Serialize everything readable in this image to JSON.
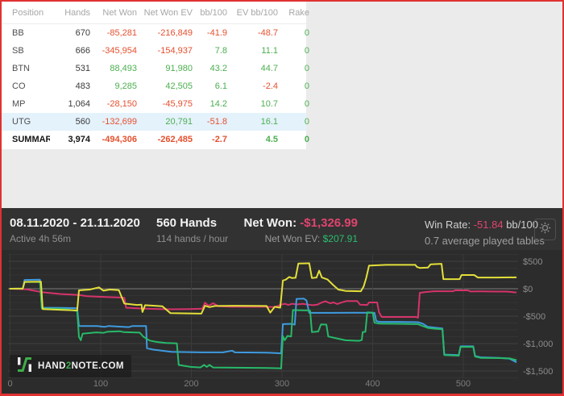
{
  "colors": {
    "frame": "#e03131",
    "pagebg": "#ebebeb",
    "neg": "#e6502f",
    "pos": "#4caf50",
    "pink": "#e0446f",
    "green": "#2bbd6e",
    "hl": "#e4f2fc"
  },
  "table": {
    "columns": [
      "Position",
      "Hands",
      "Net Won",
      "Net Won  EV",
      "bb/100",
      "EV bb/100",
      "Rake"
    ],
    "rows": [
      {
        "position": "BB",
        "hands": "670",
        "net_won": "-85,281",
        "net_won_ev": "-216,849",
        "bb100": "-41.9",
        "ev_bb100": "-48.7",
        "rake": "0"
      },
      {
        "position": "SB",
        "hands": "666",
        "net_won": "-345,954",
        "net_won_ev": "-154,937",
        "bb100": "7.8",
        "ev_bb100": "11.1",
        "rake": "0"
      },
      {
        "position": "BTN",
        "hands": "531",
        "net_won": "88,493",
        "net_won_ev": "91,980",
        "bb100": "43.2",
        "ev_bb100": "44.7",
        "rake": "0"
      },
      {
        "position": "CO",
        "hands": "483",
        "net_won": "9,285",
        "net_won_ev": "42,505",
        "bb100": "6.1",
        "ev_bb100": "-2.4",
        "rake": "0"
      },
      {
        "position": "MP",
        "hands": "1,064",
        "net_won": "-28,150",
        "net_won_ev": "-45,975",
        "bb100": "14.2",
        "ev_bb100": "10.7",
        "rake": "0"
      },
      {
        "position": "UTG",
        "hands": "560",
        "net_won": "-132,699",
        "net_won_ev": "20,791",
        "bb100": "-51.8",
        "ev_bb100": "16.1",
        "rake": "0"
      },
      {
        "position": "SUMMARY",
        "hands": "3,974",
        "net_won": "-494,306",
        "net_won_ev": "-262,485",
        "bb100": "-2.7",
        "ev_bb100": "4.5",
        "rake": "0"
      }
    ]
  },
  "panel": {
    "date_range": "08.11.2020 - 21.11.2020",
    "active_time": "Active 4h 56m",
    "hands_title": "560 Hands",
    "hands_rate": "114 hands / hour",
    "net_won_label": "Net Won:",
    "net_won_value": "-$1,326.99",
    "net_won_ev_label": "Net Won  EV:",
    "net_won_ev_value": "$207.91",
    "win_rate_label": "Win Rate:",
    "win_rate_value": "-51.84",
    "win_rate_unit": "bb/100",
    "avg_tables": "0.7 average played tables"
  },
  "watermark": {
    "part1": "HAND",
    "part2": "2",
    "part3": "NOTE.COM"
  },
  "chart_data": {
    "type": "line",
    "xlim": [
      0,
      560
    ],
    "ylim": [
      -1625,
      625
    ],
    "grid": true,
    "x_ticks": [
      {
        "value": 0,
        "label": "0"
      },
      {
        "value": 100,
        "label": "100"
      },
      {
        "value": 200,
        "label": "200"
      },
      {
        "value": 300,
        "label": "300"
      },
      {
        "value": 400,
        "label": "400"
      },
      {
        "value": 500,
        "label": "500"
      }
    ],
    "y_ticks": [
      {
        "value": 500,
        "label": "$500"
      },
      {
        "value": 0,
        "label": "$0"
      },
      {
        "value": -500,
        "label": "-$500"
      },
      {
        "value": -1000,
        "label": "-$1,000"
      },
      {
        "value": -1500,
        "label": "-$1,500"
      }
    ],
    "series": [
      {
        "name": "pink-line",
        "color": "#d6336c",
        "points": [
          [
            0,
            0
          ],
          [
            18,
            -10
          ],
          [
            30,
            -45
          ],
          [
            36,
            -65
          ],
          [
            55,
            -95
          ],
          [
            76,
            -115
          ],
          [
            85,
            -135
          ],
          [
            105,
            -150
          ],
          [
            122,
            -160
          ],
          [
            126,
            -165
          ],
          [
            128,
            -345
          ],
          [
            145,
            -360
          ],
          [
            165,
            -370
          ],
          [
            178,
            -375
          ],
          [
            198,
            -370
          ],
          [
            212,
            -365
          ],
          [
            215,
            -255
          ],
          [
            219,
            -310
          ],
          [
            224,
            -265
          ],
          [
            230,
            -320
          ],
          [
            245,
            -330
          ],
          [
            282,
            -330
          ],
          [
            292,
            -335
          ],
          [
            299,
            -290
          ],
          [
            303,
            -275
          ],
          [
            307,
            -295
          ],
          [
            311,
            -275
          ],
          [
            317,
            -285
          ],
          [
            323,
            -275
          ],
          [
            329,
            -290
          ],
          [
            334,
            -300
          ],
          [
            339,
            -290
          ],
          [
            344,
            -250
          ],
          [
            348,
            -230
          ],
          [
            353,
            -265
          ],
          [
            357,
            -250
          ],
          [
            361,
            -280
          ],
          [
            365,
            -255
          ],
          [
            371,
            -225
          ],
          [
            383,
            -225
          ],
          [
            386,
            -290
          ],
          [
            394,
            -295
          ],
          [
            396,
            -250
          ],
          [
            405,
            -250
          ],
          [
            407,
            -430
          ],
          [
            410,
            -515
          ],
          [
            448,
            -515
          ],
          [
            450,
            -530
          ],
          [
            452,
            -75
          ],
          [
            458,
            -60
          ],
          [
            468,
            -45
          ],
          [
            489,
            -45
          ],
          [
            491,
            -30
          ],
          [
            505,
            -30
          ],
          [
            508,
            -50
          ],
          [
            520,
            -48
          ],
          [
            535,
            -52
          ],
          [
            548,
            -52
          ],
          [
            558,
            -68
          ]
        ]
      },
      {
        "name": "blue-line",
        "color": "#3f9be0",
        "points": [
          [
            0,
            0
          ],
          [
            14,
            5
          ],
          [
            16,
            160
          ],
          [
            33,
            165
          ],
          [
            35,
            -345
          ],
          [
            58,
            -350
          ],
          [
            74,
            -355
          ],
          [
            76,
            -680
          ],
          [
            96,
            -680
          ],
          [
            104,
            -695
          ],
          [
            109,
            -680
          ],
          [
            131,
            -700
          ],
          [
            135,
            -680
          ],
          [
            150,
            -680
          ],
          [
            151,
            -1085
          ],
          [
            158,
            -1110
          ],
          [
            178,
            -1150
          ],
          [
            211,
            -1160
          ],
          [
            235,
            -1160
          ],
          [
            245,
            -1130
          ],
          [
            248,
            -1160
          ],
          [
            283,
            -1165
          ],
          [
            296,
            -1175
          ],
          [
            299,
            -1180
          ],
          [
            301,
            -645
          ],
          [
            310,
            -640
          ],
          [
            314,
            -655
          ],
          [
            316,
            -185
          ],
          [
            324,
            -180
          ],
          [
            327,
            -215
          ],
          [
            330,
            -440
          ],
          [
            356,
            -440
          ],
          [
            380,
            -437
          ],
          [
            402,
            -440
          ],
          [
            404,
            -590
          ],
          [
            408,
            -605
          ],
          [
            430,
            -605
          ],
          [
            450,
            -610
          ],
          [
            455,
            -635
          ],
          [
            461,
            -695
          ],
          [
            469,
            -710
          ],
          [
            477,
            -725
          ],
          [
            479,
            -1200
          ],
          [
            495,
            -1210
          ],
          [
            497,
            -1050
          ],
          [
            511,
            -1050
          ],
          [
            513,
            -1225
          ],
          [
            519,
            -1250
          ],
          [
            540,
            -1260
          ],
          [
            551,
            -1275
          ],
          [
            558,
            -1335
          ]
        ]
      },
      {
        "name": "green-line",
        "color": "#27b969",
        "points": [
          [
            0,
            0
          ],
          [
            14,
            0
          ],
          [
            16,
            120
          ],
          [
            33,
            125
          ],
          [
            35,
            -360
          ],
          [
            58,
            -368
          ],
          [
            74,
            -405
          ],
          [
            76,
            -880
          ],
          [
            78,
            -940
          ],
          [
            80,
            -820
          ],
          [
            95,
            -795
          ],
          [
            103,
            -805
          ],
          [
            107,
            -785
          ],
          [
            121,
            -775
          ],
          [
            125,
            -790
          ],
          [
            143,
            -800
          ],
          [
            147,
            -875
          ],
          [
            154,
            -945
          ],
          [
            162,
            -970
          ],
          [
            172,
            -990
          ],
          [
            184,
            -995
          ],
          [
            186,
            -1390
          ],
          [
            199,
            -1425
          ],
          [
            210,
            -1435
          ],
          [
            214,
            -1390
          ],
          [
            217,
            -1425
          ],
          [
            220,
            -1390
          ],
          [
            224,
            -1435
          ],
          [
            249,
            -1440
          ],
          [
            283,
            -1445
          ],
          [
            297,
            -1450
          ],
          [
            299,
            -1455
          ],
          [
            301,
            -865
          ],
          [
            303,
            -940
          ],
          [
            306,
            -860
          ],
          [
            310,
            -870
          ],
          [
            312,
            -390
          ],
          [
            329,
            -395
          ],
          [
            331,
            -400
          ],
          [
            333,
            -790
          ],
          [
            340,
            -780
          ],
          [
            343,
            -650
          ],
          [
            349,
            -655
          ],
          [
            351,
            -870
          ],
          [
            360,
            -905
          ],
          [
            370,
            -940
          ],
          [
            385,
            -950
          ],
          [
            388,
            -935
          ],
          [
            389,
            -790
          ],
          [
            392,
            -785
          ],
          [
            394,
            -430
          ],
          [
            400,
            -435
          ],
          [
            402,
            -620
          ],
          [
            407,
            -635
          ],
          [
            430,
            -640
          ],
          [
            450,
            -645
          ],
          [
            455,
            -680
          ],
          [
            461,
            -715
          ],
          [
            469,
            -730
          ],
          [
            477,
            -740
          ],
          [
            479,
            -1210
          ],
          [
            495,
            -1220
          ],
          [
            497,
            -1060
          ],
          [
            511,
            -1060
          ],
          [
            513,
            -1235
          ],
          [
            519,
            -1260
          ],
          [
            540,
            -1265
          ],
          [
            551,
            -1270
          ],
          [
            558,
            -1300
          ]
        ]
      },
      {
        "name": "yellow-line",
        "color": "#e3df3a",
        "points": [
          [
            0,
            0
          ],
          [
            14,
            5
          ],
          [
            16,
            125
          ],
          [
            34,
            130
          ],
          [
            36,
            -370
          ],
          [
            58,
            -385
          ],
          [
            74,
            -395
          ],
          [
            76,
            -30
          ],
          [
            88,
            -15
          ],
          [
            98,
            25
          ],
          [
            103,
            -35
          ],
          [
            110,
            -15
          ],
          [
            120,
            -25
          ],
          [
            126,
            -270
          ],
          [
            140,
            -295
          ],
          [
            145,
            -290
          ],
          [
            146,
            -425
          ],
          [
            149,
            -300
          ],
          [
            168,
            -320
          ],
          [
            177,
            -445
          ],
          [
            211,
            -455
          ],
          [
            215,
            -310
          ],
          [
            220,
            -335
          ],
          [
            226,
            -315
          ],
          [
            248,
            -310
          ],
          [
            283,
            -315
          ],
          [
            287,
            -435
          ],
          [
            292,
            -330
          ],
          [
            298,
            -345
          ],
          [
            301,
            150
          ],
          [
            304,
            165
          ],
          [
            308,
            215
          ],
          [
            311,
            195
          ],
          [
            315,
            200
          ],
          [
            318,
            460
          ],
          [
            330,
            465
          ],
          [
            333,
            195
          ],
          [
            338,
            205
          ],
          [
            341,
            330
          ],
          [
            344,
            205
          ],
          [
            350,
            170
          ],
          [
            356,
            75
          ],
          [
            362,
            -15
          ],
          [
            370,
            -40
          ],
          [
            387,
            -45
          ],
          [
            390,
            40
          ],
          [
            393,
            200
          ],
          [
            396,
            420
          ],
          [
            400,
            425
          ],
          [
            415,
            435
          ],
          [
            447,
            435
          ],
          [
            449,
            395
          ],
          [
            452,
            380
          ],
          [
            461,
            385
          ],
          [
            464,
            445
          ],
          [
            476,
            455
          ],
          [
            478,
            175
          ],
          [
            496,
            175
          ],
          [
            498,
            250
          ],
          [
            512,
            250
          ],
          [
            516,
            205
          ],
          [
            535,
            205
          ],
          [
            558,
            208
          ]
        ]
      }
    ]
  }
}
